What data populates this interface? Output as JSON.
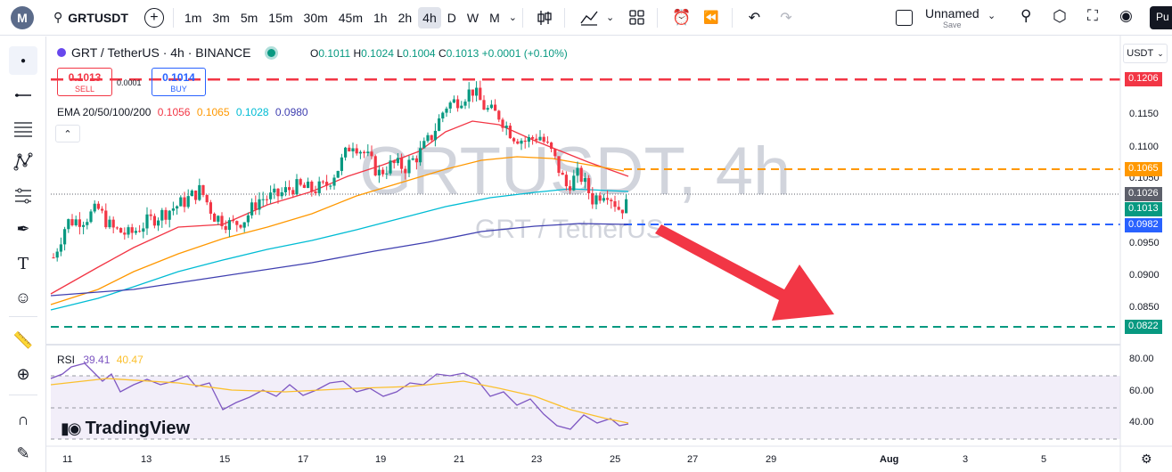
{
  "toolbar": {
    "logo_letter": "M",
    "symbol": "GRTUSDT",
    "intervals": [
      "1m",
      "3m",
      "5m",
      "15m",
      "30m",
      "45m",
      "1h",
      "2h",
      "4h",
      "D",
      "W",
      "M"
    ],
    "active_interval": "4h",
    "layout_name": "Unnamed",
    "save_label": "Save",
    "publish_label": "Pu"
  },
  "legend": {
    "title": "GRT / TetherUS · 4h · BINANCE",
    "open_label": "O",
    "open": "0.1011",
    "high_label": "H",
    "high": "0.1024",
    "low_label": "L",
    "low": "0.1004",
    "close_label": "C",
    "close": "0.1013",
    "change": "+0.0001 (+0.10%)"
  },
  "trade": {
    "sell_price": "0.1013",
    "sell_label": "SELL",
    "buy_price": "0.1014",
    "buy_label": "BUY",
    "spread": "0.0001"
  },
  "ema": {
    "label": "EMA 20/50/100/200",
    "v20": "0.1056",
    "v50": "0.1065",
    "v100": "0.1028",
    "v200": "0.0980",
    "colors": {
      "ema20": "#f23645",
      "ema50": "#ff9800",
      "ema100": "#00bcd4",
      "ema200": "#3f3fb0"
    }
  },
  "watermark": {
    "symbol": "GRTUSDT, 4h",
    "name": "GRT / TetherUS"
  },
  "rsi": {
    "label": "RSI",
    "value": "39.41",
    "ma": "40.47",
    "colors": {
      "rsi": "#7e57c2",
      "ma": "#fbc02d"
    }
  },
  "brand": "TradingView",
  "price_axis": {
    "currency": "USDT",
    "ticks": [
      "0.1150",
      "0.1100",
      "0.1050",
      "0.0950",
      "0.0900",
      "0.0850"
    ],
    "rsi_ticks": [
      "80.00",
      "60.00",
      "40.00"
    ],
    "pills": [
      {
        "text": "0.1206",
        "color": "#f23645"
      },
      {
        "text": "0.1065",
        "color": "#ff9800"
      },
      {
        "text": "0.1026",
        "color": "#5d606b"
      },
      {
        "text": "0.1013",
        "color": "#089981"
      },
      {
        "text": "0.0982",
        "color": "#2962ff"
      },
      {
        "text": "0.0822",
        "color": "#089981"
      }
    ]
  },
  "time_axis": [
    "11",
    "13",
    "15",
    "17",
    "19",
    "21",
    "23",
    "25",
    "27",
    "29",
    "Aug",
    "3",
    "5"
  ],
  "colors": {
    "up": "#089981",
    "down": "#f23645",
    "resistance": "#f23645",
    "support": "#089981",
    "arrow": "#f23645"
  }
}
